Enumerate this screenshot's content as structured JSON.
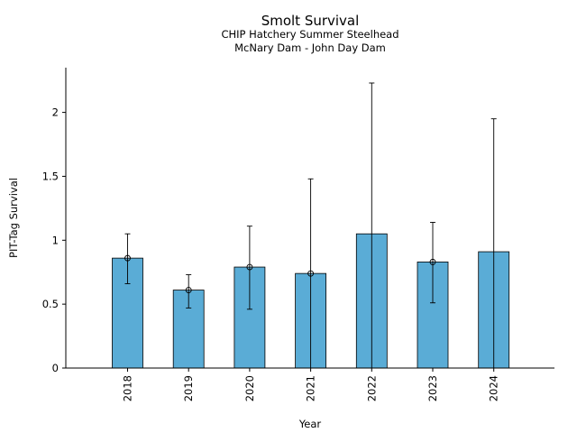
{
  "chart_data": {
    "type": "bar",
    "title": "Smolt Survival",
    "subtitle_lines": [
      "CHIP Hatchery Summer Steelhead",
      "McNary Dam - John Day Dam"
    ],
    "xlabel": "Year",
    "ylabel": "PIT-Tag Survival",
    "ylim": [
      0,
      2.35
    ],
    "yticks": [
      0,
      0.5,
      1,
      1.5,
      2
    ],
    "ytick_labels": [
      "0",
      "0.5",
      "1",
      "1.5",
      "2"
    ],
    "categories": [
      "2018",
      "2019",
      "2020",
      "2021",
      "2022",
      "2023",
      "2024"
    ],
    "values": [
      0.86,
      0.61,
      0.79,
      0.74,
      1.05,
      0.83,
      0.91
    ],
    "error_low": [
      0.66,
      0.47,
      0.46,
      0.0,
      0.0,
      0.51,
      0.0
    ],
    "error_high": [
      1.05,
      0.73,
      1.11,
      1.48,
      2.23,
      1.14,
      1.95
    ],
    "point_markers": [
      true,
      true,
      true,
      true,
      false,
      true,
      false
    ],
    "bar_color": "#5aacd6",
    "edge_color": "#000000",
    "grid": false
  }
}
